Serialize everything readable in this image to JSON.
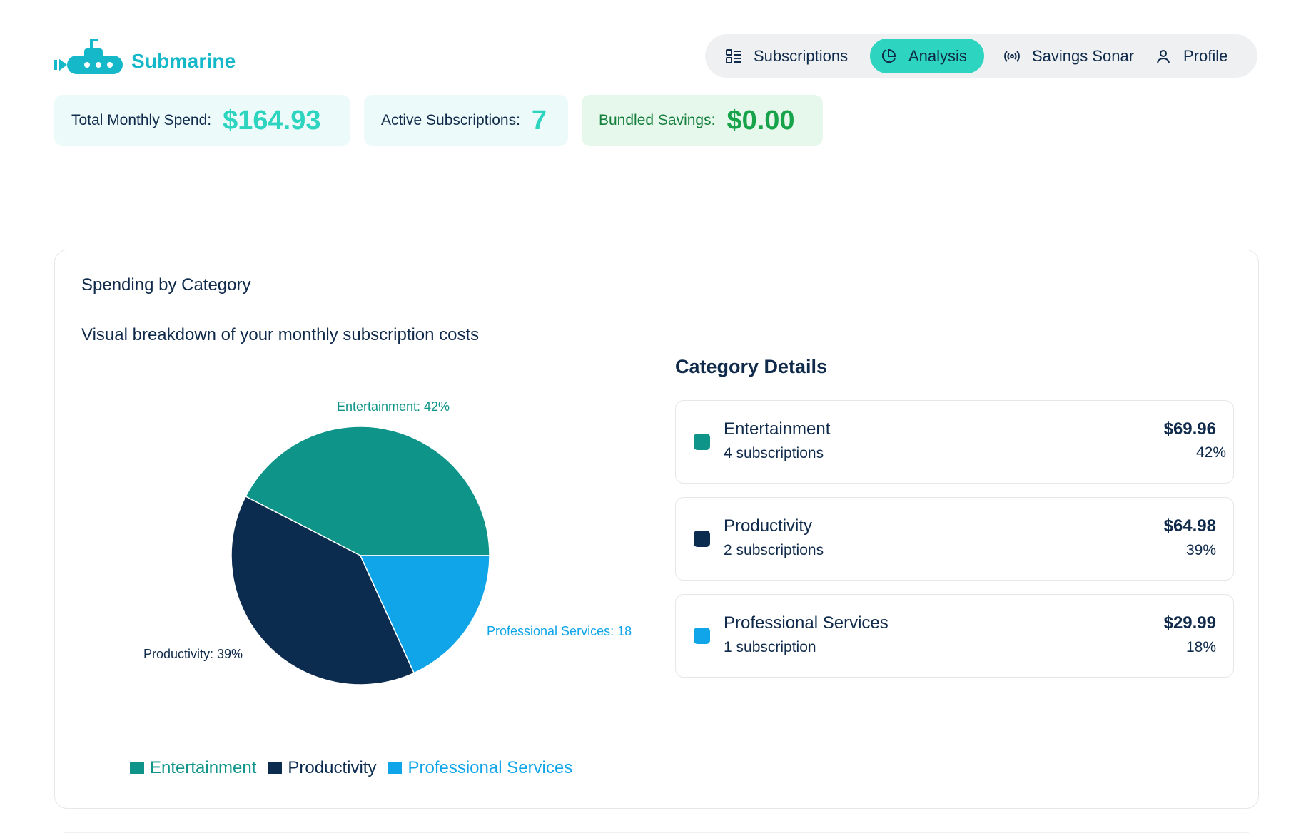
{
  "app": {
    "name": "Submarine"
  },
  "nav": {
    "items": [
      {
        "label": "Subscriptions",
        "icon": "list-grid-icon"
      },
      {
        "label": "Analysis",
        "icon": "pie-chart-icon"
      },
      {
        "label": "Savings Sonar",
        "icon": "broadcast-icon"
      },
      {
        "label": "Profile",
        "icon": "user-icon"
      }
    ],
    "active": "Analysis",
    "active_color": "#2dd4bf"
  },
  "stats": {
    "total_monthly_spend": {
      "label": "Total Monthly Spend:",
      "value": "$164.93",
      "color": "#2dd4bf"
    },
    "active_subscriptions": {
      "label": "Active Subscriptions:",
      "value": "7",
      "color": "#2dd4bf"
    },
    "bundled_savings": {
      "label": "Bundled Savings:",
      "value": "$0.00",
      "color": "#16a34a"
    }
  },
  "card": {
    "title": "Spending by Category",
    "subtitle": "Visual breakdown of your monthly subscription costs"
  },
  "chart_data": {
    "type": "pie",
    "categories": [
      "Entertainment",
      "Productivity",
      "Professional Services"
    ],
    "values": [
      69.96,
      64.98,
      29.99
    ],
    "percents": [
      42,
      39,
      18
    ],
    "colors": [
      "#0e9488",
      "#0c2c4f",
      "#10a5e9"
    ],
    "slice_labels": [
      "Entertainment: 42%",
      "Productivity: 39%",
      "Professional Services: 18"
    ],
    "legend": [
      "Entertainment",
      "Productivity",
      "Professional Services"
    ],
    "legend_placement": "bottom"
  },
  "details": {
    "title": "Category Details",
    "rows": [
      {
        "name": "Entertainment",
        "count": "4 subscriptions",
        "amount": "$69.96",
        "percent": "42%",
        "color": "#0e9488"
      },
      {
        "name": "Productivity",
        "count": "2 subscriptions",
        "amount": "$64.98",
        "percent": "39%",
        "color": "#0c2c4f"
      },
      {
        "name": "Professional Services",
        "count": "1 subscription",
        "amount": "$29.99",
        "percent": "18%",
        "color": "#10a5e9"
      }
    ]
  }
}
